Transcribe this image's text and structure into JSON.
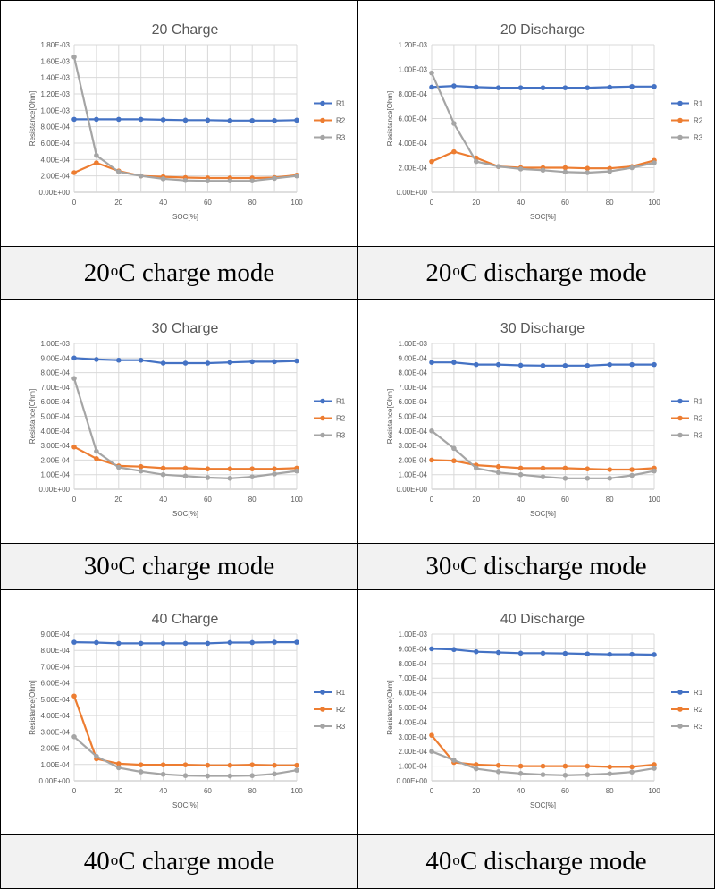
{
  "panels": [
    {
      "caption_pre": "20 ",
      "caption_sup": "o",
      "caption_post": "C charge mode",
      "chart_data": {
        "type": "line",
        "title": "20 Charge",
        "xlabel": "SOC[%]",
        "ylabel": "Resistance[Ohm]",
        "x": [
          0,
          10,
          20,
          30,
          40,
          50,
          60,
          70,
          80,
          90,
          100
        ],
        "xticks": [
          "0",
          "20",
          "40",
          "60",
          "80",
          "100"
        ],
        "ylim": [
          0,
          0.0018
        ],
        "yticks": [
          "0.00E+00",
          "2.00E-04",
          "4.00E-04",
          "6.00E-04",
          "8.00E-04",
          "1.00E-03",
          "1.20E-03",
          "1.40E-03",
          "1.60E-03",
          "1.80E-03"
        ],
        "legend_position": "right",
        "series": [
          {
            "name": "R1",
            "color": "#4472c4",
            "values": [
              0.00089,
              0.00089,
              0.00089,
              0.00089,
              0.000885,
              0.00088,
              0.00088,
              0.000875,
              0.000875,
              0.000875,
              0.00088
            ]
          },
          {
            "name": "R2",
            "color": "#ed7d31",
            "values": [
              0.00024,
              0.00036,
              0.00026,
              0.0002,
              0.00019,
              0.00018,
              0.000175,
              0.000175,
              0.000175,
              0.00018,
              0.00021
            ]
          },
          {
            "name": "R3",
            "color": "#a5a5a5",
            "values": [
              0.00165,
              0.00045,
              0.00025,
              0.0002,
              0.000165,
              0.000145,
              0.00014,
              0.00014,
              0.00014,
              0.00017,
              0.0002
            ]
          }
        ]
      }
    },
    {
      "caption_pre": "20 ",
      "caption_sup": "o",
      "caption_post": "C discharge mode",
      "chart_data": {
        "type": "line",
        "title": "20 Discharge",
        "xlabel": "SOC[%]",
        "ylabel": "Resistance[Ohm]",
        "x": [
          0,
          10,
          20,
          30,
          40,
          50,
          60,
          70,
          80,
          90,
          100
        ],
        "xticks": [
          "0",
          "20",
          "40",
          "60",
          "80",
          "100"
        ],
        "ylim": [
          0,
          0.0012
        ],
        "yticks": [
          "0.00E+00",
          "2.00E-04",
          "4.00E-04",
          "6.00E-04",
          "8.00E-04",
          "1.00E-03",
          "1.20E-03"
        ],
        "legend_position": "right",
        "series": [
          {
            "name": "R1",
            "color": "#4472c4",
            "values": [
              0.000855,
              0.000865,
              0.000855,
              0.00085,
              0.00085,
              0.00085,
              0.00085,
              0.00085,
              0.000855,
              0.00086,
              0.00086
            ]
          },
          {
            "name": "R2",
            "color": "#ed7d31",
            "values": [
              0.00025,
              0.00033,
              0.00028,
              0.00021,
              0.0002,
              0.0002,
              0.0002,
              0.000195,
              0.000195,
              0.00021,
              0.00026
            ]
          },
          {
            "name": "R3",
            "color": "#a5a5a5",
            "values": [
              0.00097,
              0.00056,
              0.00025,
              0.00021,
              0.00019,
              0.00018,
              0.000165,
              0.00016,
              0.00017,
              0.0002,
              0.00024
            ]
          }
        ]
      }
    },
    {
      "caption_pre": "30 ",
      "caption_sup": "o",
      "caption_post": "C charge mode",
      "chart_data": {
        "type": "line",
        "title": "30 Charge",
        "xlabel": "SOC[%]",
        "ylabel": "Resistance[Ohm]",
        "x": [
          0,
          10,
          20,
          30,
          40,
          50,
          60,
          70,
          80,
          90,
          100
        ],
        "xticks": [
          "0",
          "20",
          "40",
          "60",
          "80",
          "100"
        ],
        "ylim": [
          0,
          0.001
        ],
        "yticks": [
          "0.00E+00",
          "1.00E-04",
          "2.00E-04",
          "3.00E-04",
          "4.00E-04",
          "5.00E-04",
          "6.00E-04",
          "7.00E-04",
          "8.00E-04",
          "9.00E-04",
          "1.00E-03"
        ],
        "legend_position": "right",
        "series": [
          {
            "name": "R1",
            "color": "#4472c4",
            "values": [
              0.0009,
              0.00089,
              0.000885,
              0.000885,
              0.000865,
              0.000865,
              0.000865,
              0.00087,
              0.000875,
              0.000875,
              0.00088
            ]
          },
          {
            "name": "R2",
            "color": "#ed7d31",
            "values": [
              0.00029,
              0.00021,
              0.00016,
              0.000155,
              0.000145,
              0.000145,
              0.00014,
              0.00014,
              0.00014,
              0.00014,
              0.000145
            ]
          },
          {
            "name": "R3",
            "color": "#a5a5a5",
            "values": [
              0.00076,
              0.00026,
              0.00015,
              0.000125,
              0.0001,
              9e-05,
              8e-05,
              7.5e-05,
              8.5e-05,
              0.000105,
              0.000125
            ]
          }
        ]
      }
    },
    {
      "caption_pre": "30 ",
      "caption_sup": "o",
      "caption_post": "C discharge mode",
      "chart_data": {
        "type": "line",
        "title": "30 Discharge",
        "xlabel": "SOC[%]",
        "ylabel": "Resistance[Ohm]",
        "x": [
          0,
          10,
          20,
          30,
          40,
          50,
          60,
          70,
          80,
          90,
          100
        ],
        "xticks": [
          "0",
          "20",
          "40",
          "60",
          "80",
          "100"
        ],
        "ylim": [
          0,
          0.001
        ],
        "yticks": [
          "0.00E+00",
          "1.00E-04",
          "2.00E-04",
          "3.00E-04",
          "4.00E-04",
          "5.00E-04",
          "6.00E-04",
          "7.00E-04",
          "8.00E-04",
          "9.00E-04",
          "1.00E-03"
        ],
        "legend_position": "right",
        "series": [
          {
            "name": "R1",
            "color": "#4472c4",
            "values": [
              0.00087,
              0.00087,
              0.000855,
              0.000855,
              0.00085,
              0.000848,
              0.000848,
              0.000848,
              0.000855,
              0.000855,
              0.000855
            ]
          },
          {
            "name": "R2",
            "color": "#ed7d31",
            "values": [
              0.0002,
              0.000195,
              0.000165,
              0.000155,
              0.000145,
              0.000145,
              0.000145,
              0.00014,
              0.000135,
              0.000135,
              0.000145
            ]
          },
          {
            "name": "R3",
            "color": "#a5a5a5",
            "values": [
              0.0004,
              0.00028,
              0.000145,
              0.000115,
              0.0001,
              8.5e-05,
              7.5e-05,
              7.5e-05,
              7.5e-05,
              9.5e-05,
              0.000125
            ]
          }
        ]
      }
    },
    {
      "caption_pre": "40 ",
      "caption_sup": "o",
      "caption_post": "C charge mode",
      "chart_data": {
        "type": "line",
        "title": "40 Charge",
        "xlabel": "SOC[%]",
        "ylabel": "Resistance[Ohm]",
        "x": [
          0,
          10,
          20,
          30,
          40,
          50,
          60,
          70,
          80,
          90,
          100
        ],
        "xticks": [
          "0",
          "20",
          "40",
          "60",
          "80",
          "100"
        ],
        "ylim": [
          0,
          0.0009
        ],
        "yticks": [
          "0.00E+00",
          "1.00E-04",
          "2.00E-04",
          "3.00E-04",
          "4.00E-04",
          "5.00E-04",
          "6.00E-04",
          "7.00E-04",
          "8.00E-04",
          "9.00E-04"
        ],
        "legend_position": "right",
        "series": [
          {
            "name": "R1",
            "color": "#4472c4",
            "values": [
              0.00085,
              0.000848,
              0.000843,
              0.000843,
              0.000843,
              0.000843,
              0.000843,
              0.000848,
              0.000848,
              0.00085,
              0.00085
            ]
          },
          {
            "name": "R2",
            "color": "#ed7d31",
            "values": [
              0.00052,
              0.000135,
              0.000105,
              9.8e-05,
              9.8e-05,
              9.8e-05,
              9.5e-05,
              9.5e-05,
              9.8e-05,
              9.5e-05,
              9.5e-05
            ]
          },
          {
            "name": "R3",
            "color": "#a5a5a5",
            "values": [
              0.00027,
              0.00015,
              8e-05,
              5.5e-05,
              4e-05,
              3.2e-05,
              3e-05,
              3e-05,
              3.2e-05,
              4.2e-05,
              6.5e-05
            ]
          }
        ]
      }
    },
    {
      "caption_pre": "40 ",
      "caption_sup": "o",
      "caption_post": "C discharge mode",
      "chart_data": {
        "type": "line",
        "title": "40 Discharge",
        "xlabel": "SOC[%]",
        "ylabel": "Resistance[Ohm]",
        "x": [
          0,
          10,
          20,
          30,
          40,
          50,
          60,
          70,
          80,
          90,
          100
        ],
        "xticks": [
          "0",
          "20",
          "40",
          "60",
          "80",
          "100"
        ],
        "ylim": [
          0,
          0.001
        ],
        "yticks": [
          "0.00E+00",
          "1.00E-04",
          "2.00E-04",
          "3.00E-04",
          "4.00E-04",
          "5.00E-04",
          "6.00E-04",
          "7.00E-04",
          "8.00E-04",
          "9.00E-04",
          "1.00E-03"
        ],
        "legend_position": "right",
        "series": [
          {
            "name": "R1",
            "color": "#4472c4",
            "values": [
              0.0009,
              0.000895,
              0.00088,
              0.000875,
              0.00087,
              0.00087,
              0.000868,
              0.000865,
              0.000862,
              0.000862,
              0.00086
            ]
          },
          {
            "name": "R2",
            "color": "#ed7d31",
            "values": [
              0.00031,
              0.000125,
              0.00011,
              0.000105,
              0.0001,
              0.0001,
              0.0001,
              0.0001,
              9.5e-05,
              9.5e-05,
              0.00011
            ]
          },
          {
            "name": "R3",
            "color": "#a5a5a5",
            "values": [
              0.0002,
              0.00014,
              8.2e-05,
              6.2e-05,
              5e-05,
              4.2e-05,
              3.8e-05,
              4.2e-05,
              4.8e-05,
              6e-05,
              8.5e-05
            ]
          }
        ]
      }
    }
  ]
}
